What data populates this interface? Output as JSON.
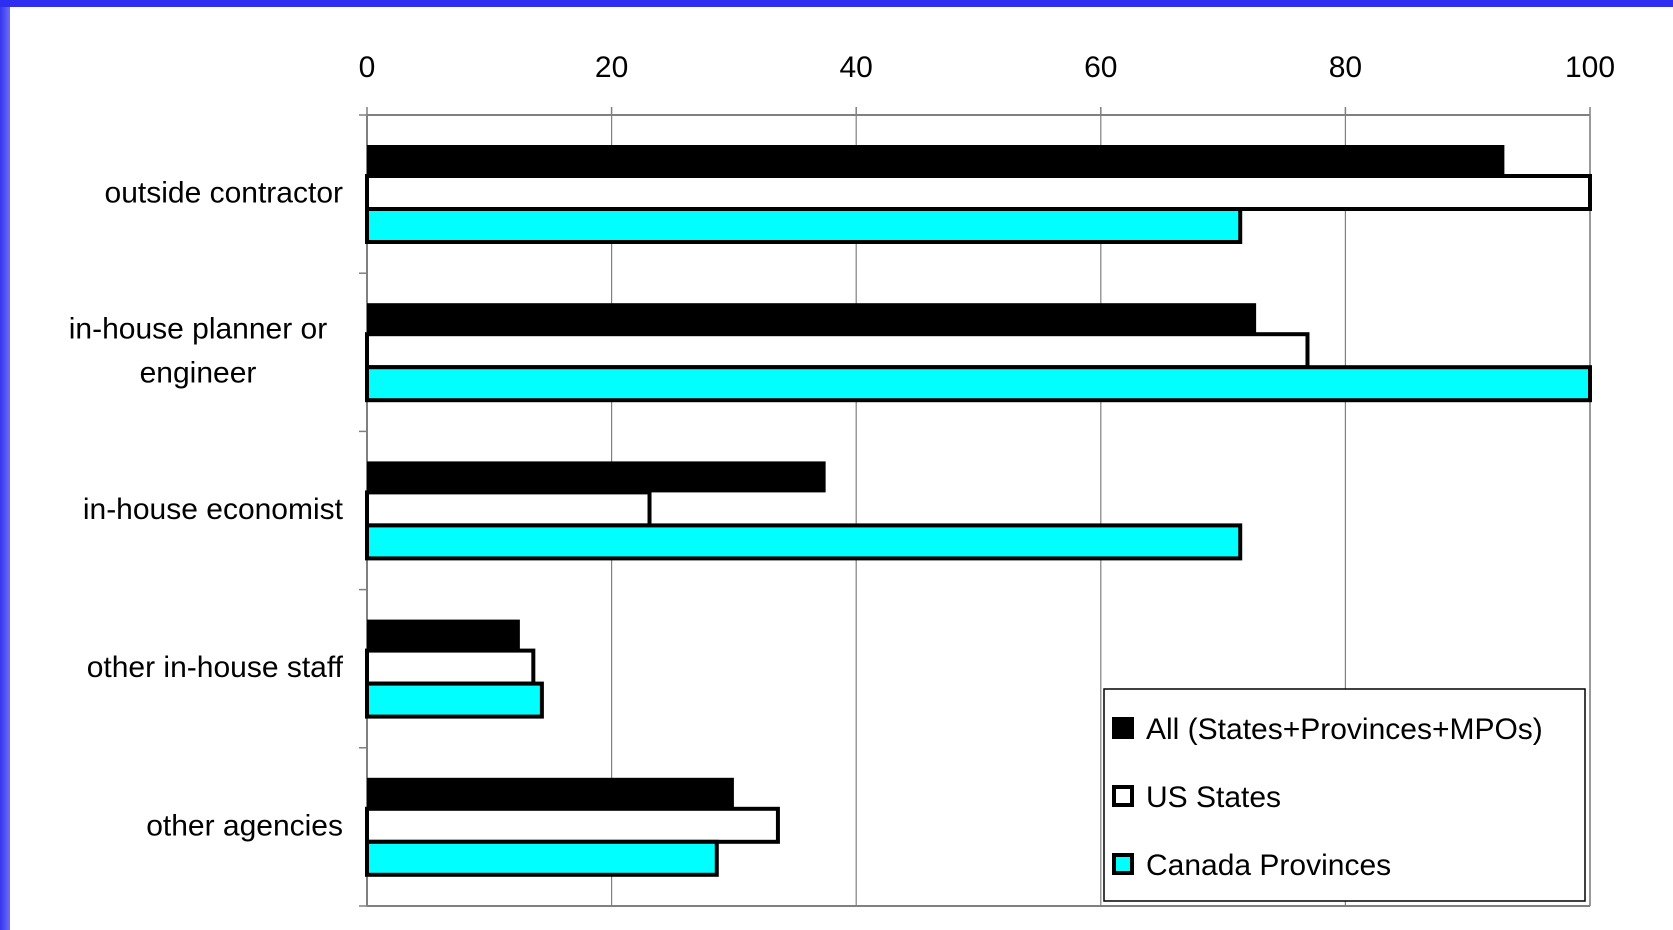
{
  "colors": {
    "frame_left": "#3b3bf5",
    "frame_top": "#2e2ef0",
    "grid": "#808080",
    "series": [
      "#000000",
      "#ffffff",
      "#00ffff"
    ]
  },
  "chart_data": {
    "type": "bar",
    "orientation": "horizontal",
    "categories": [
      "outside contractor",
      "in-house planner or engineer",
      "in-house economist",
      "other in-house staff",
      "other agencies"
    ],
    "category_lines": [
      [
        "outside contractor"
      ],
      [
        "in-house planner or",
        "engineer"
      ],
      [
        "in-house economist"
      ],
      [
        "other in-house staff"
      ],
      [
        "other agencies"
      ]
    ],
    "series": [
      {
        "name": "All (States+Provinces+MPOs)",
        "values": [
          93,
          72.7,
          37.5,
          12.5,
          30
        ],
        "color": "#000000"
      },
      {
        "name": "US States",
        "values": [
          100,
          76.9,
          23.1,
          13.6,
          33.6
        ],
        "color": "#ffffff"
      },
      {
        "name": "Canada Provinces",
        "values": [
          71.4,
          100,
          71.4,
          14.3,
          28.6
        ],
        "color": "#00ffff"
      }
    ],
    "x_ticks": [
      "0",
      "20",
      "40",
      "60",
      "80",
      "100"
    ],
    "xlim": [
      0,
      100
    ],
    "x_axis_position": "top",
    "grid": true,
    "legend_position": "bottom-right",
    "title": "",
    "xlabel": "",
    "ylabel": ""
  }
}
